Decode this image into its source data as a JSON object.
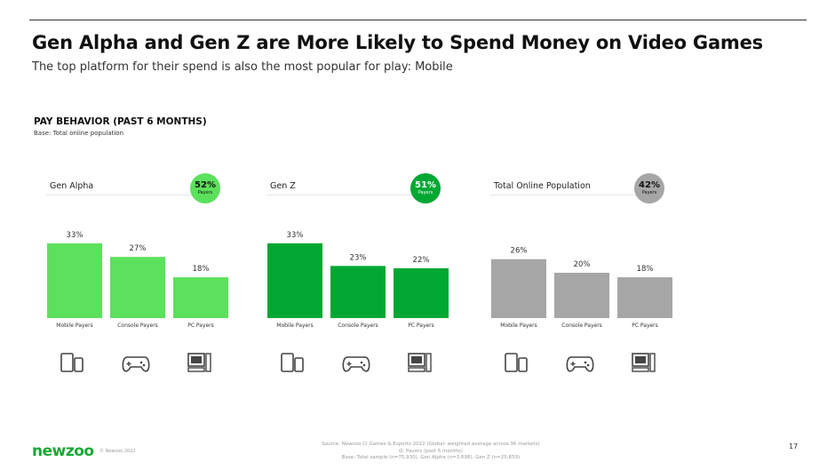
{
  "title": "Gen Alpha and Gen Z are More Likely to Spend Money on Video Games",
  "subtitle": "The top platform for their spend is also the most popular for play: Mobile",
  "section_title": "PAY BEHAVIOR (PAST 6 MONTHS)",
  "section_base": "Base: Total online population",
  "chart_data": [
    {
      "type": "bar",
      "title": "Gen Alpha",
      "badge": {
        "value": "52%",
        "label": "Payers"
      },
      "color": "#5ce15c",
      "categories": [
        "Mobile Payers",
        "Console Payers",
        "PC Payers"
      ],
      "values": [
        33,
        27,
        18
      ],
      "ylim": [
        0,
        40
      ]
    },
    {
      "type": "bar",
      "title": "Gen Z",
      "badge": {
        "value": "51%",
        "label": "Payers"
      },
      "color": "#00a833",
      "categories": [
        "Mobile Payers",
        "Console Payers",
        "PC Payers"
      ],
      "values": [
        33,
        23,
        22
      ],
      "ylim": [
        0,
        40
      ]
    },
    {
      "type": "bar",
      "title": "Total Online Population",
      "badge": {
        "value": "42%",
        "label": "Payers"
      },
      "color": "#a6a6a6",
      "categories": [
        "Mobile Payers",
        "Console Payers",
        "PC Payers"
      ],
      "values": [
        26,
        20,
        18
      ],
      "ylim": [
        0,
        40
      ]
    }
  ],
  "icons": [
    "mobile-icon",
    "gamepad-icon",
    "pc-icon"
  ],
  "footer": {
    "logo": "newzoo",
    "copyright": "© Newzoo 2022",
    "source": [
      "Source: Newzoo CI Games & Esports 2022 (Global: weighted average across 36 markets)",
      "Q: Payers (past 6 months)",
      "Base: Total sample (n=75,930), Gen Alpha (n=3,698), Gen Z (n=25,659)"
    ],
    "page": "17"
  }
}
